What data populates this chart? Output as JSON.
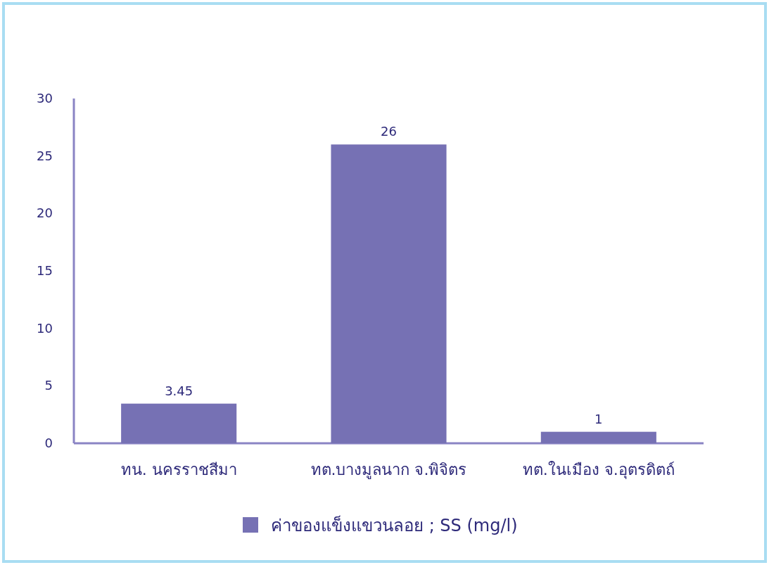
{
  "chart_data": {
    "type": "bar",
    "categories": [
      "ทน. นครราชสีมา",
      "ทต.บางมูลนาก จ.พิจิตร",
      "ทต.ในเมือง จ.อุตรดิตถ์"
    ],
    "series": [
      {
        "name": "ค่าของแข็งแขวนลอย ; SS (mg/l)",
        "color": "#7671b4",
        "values": [
          3.45,
          26,
          1
        ]
      }
    ],
    "ylim": [
      0,
      30
    ],
    "yticks": [
      0,
      5,
      10,
      15,
      20,
      25,
      30
    ],
    "data_labels": true,
    "legend": "bottom",
    "grid": false
  }
}
